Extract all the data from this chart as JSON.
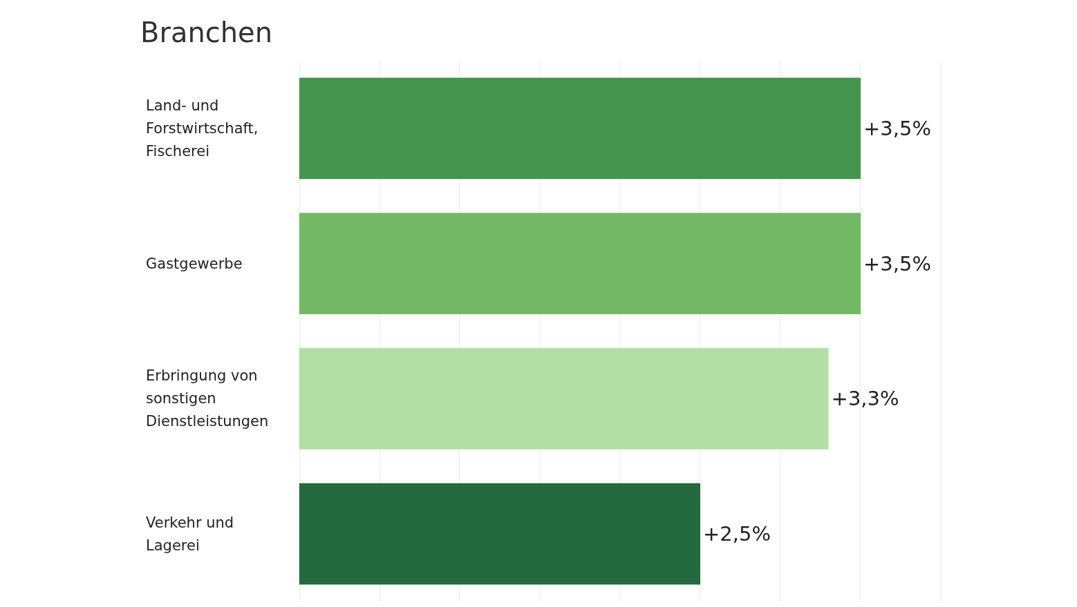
{
  "chart_data": {
    "type": "bar",
    "orientation": "horizontal",
    "title": "Branchen",
    "categories": [
      "Land- und Forstwirtschaft, Fischerei",
      "Gastgewerbe",
      "Erbringung von sonstigen Dienstleistungen",
      "Verkehr und Lagerei"
    ],
    "values": [
      3.5,
      3.5,
      3.3,
      2.5
    ],
    "colors": [
      "#46934e",
      "#74b966",
      "#b3dfa6",
      "#246a3e"
    ],
    "value_labels": [
      "+3,5%",
      "+3,5%",
      "+3,3%",
      "+2,5%"
    ],
    "xlim": [
      0,
      4
    ],
    "xticks": [
      {
        "value": 0,
        "label": null
      },
      {
        "value": 0.5,
        "label": null
      },
      {
        "value": 1,
        "label": null
      },
      {
        "value": 1.5,
        "label": null
      },
      {
        "value": 2,
        "label": null
      },
      {
        "value": 2.5,
        "label": null
      },
      {
        "value": 3,
        "label": null
      },
      {
        "value": 3.5,
        "label": null
      },
      {
        "value": 4,
        "label": null
      }
    ],
    "grid": "x",
    "tick_labels": "y"
  }
}
